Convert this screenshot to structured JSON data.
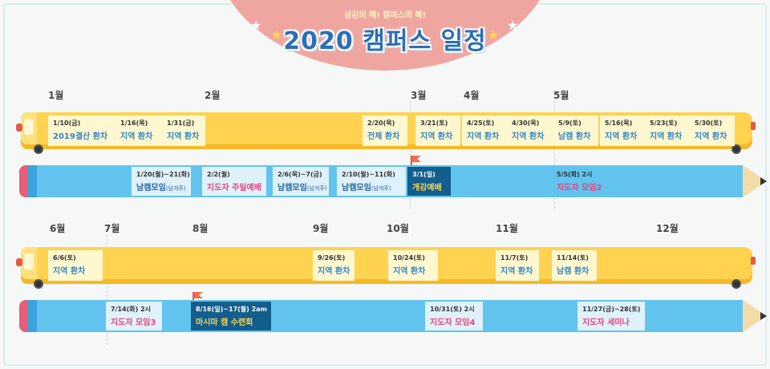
{
  "header": {
    "subtitle": "섬김의 해! 캠퍼스의 해!",
    "title": "2020 캠퍼스 일정"
  },
  "colors": {
    "bus": "#ffd250",
    "pencil": "#62c3ef",
    "dome": "#f0a6a0",
    "title": "#2b6fb6"
  },
  "row1": {
    "months": [
      "1월",
      "2월",
      "3월",
      "4월",
      "5월"
    ],
    "bus": [
      {
        "date": "1/10(금)",
        "name": "2019결산 환차"
      },
      {
        "date": "1/16(목)",
        "name": "지역 환차"
      },
      {
        "date": "1/31(금)",
        "name": "지역 환차"
      },
      {
        "date": "2/20(목)",
        "name": "전체 환차"
      },
      {
        "date": "3/21(토)",
        "name": "지역 환차"
      },
      {
        "date": "4/25(토)",
        "name": "지역 환차"
      },
      {
        "date": "4/30(목)",
        "name": "지역 환차"
      },
      {
        "date": "5/9(토)",
        "name": "남캠 환차"
      },
      {
        "date": "5/16(목)",
        "name": "지역 환차"
      },
      {
        "date": "5/23(토)",
        "name": "지역 환차"
      },
      {
        "date": "5/30(토)",
        "name": "지역 환차"
      }
    ],
    "pencil": [
      {
        "date": "1/20(월)~21(화)",
        "name": "남캠모임",
        "small": "(남겨주)"
      },
      {
        "date": "2/2(월)",
        "name": "지도자 주일예배",
        "small": ""
      },
      {
        "date": "2/6(목)~7(금)",
        "name": "남캠모임",
        "small": "(남겨주)"
      },
      {
        "date": "2/10(월)~11(화)",
        "name": "남캠모임",
        "small": "(남겨주)"
      },
      {
        "date": "3/1(일)",
        "name": "개강예배",
        "small": ""
      },
      {
        "date": "5/5(화) 2시",
        "name": "지도자 모임2",
        "small": ""
      }
    ]
  },
  "row2": {
    "months": [
      "6월",
      "7월",
      "8월",
      "9월",
      "10월",
      "11월",
      "12월"
    ],
    "bus": [
      {
        "date": "6/6(토)",
        "name": "지역 환차"
      },
      {
        "date": "9/26(토)",
        "name": "지역 환차"
      },
      {
        "date": "10/24(토)",
        "name": "지역 환차"
      },
      {
        "date": "11/7(토)",
        "name": "지역 환차"
      },
      {
        "date": "11/14(토)",
        "name": "남캠 환차"
      }
    ],
    "pencil": [
      {
        "date": "7/14(화) 2시",
        "name": "지도자 모임3"
      },
      {
        "date": "8/16(일)~17(월) 2am",
        "name": "마시마 캠 수련회"
      },
      {
        "date": "10/31(토) 2시",
        "name": "지도자 모임4"
      },
      {
        "date": "11/27(금)~28(토)",
        "name": "지도자 세미나"
      }
    ]
  }
}
